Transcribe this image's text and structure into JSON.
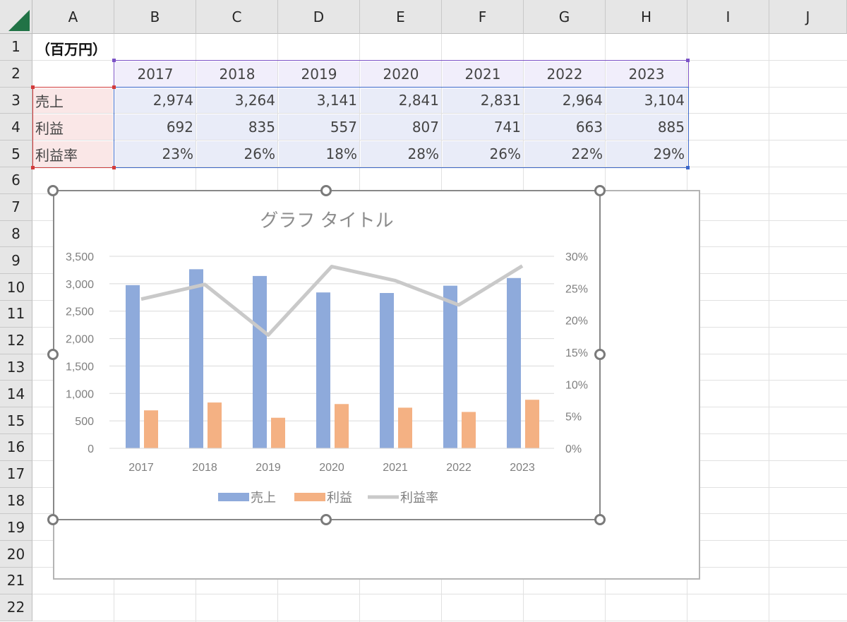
{
  "sheet": {
    "columns": [
      "A",
      "B",
      "C",
      "D",
      "E",
      "F",
      "G",
      "H",
      "I",
      "J"
    ],
    "rows": [
      "1",
      "2",
      "3",
      "4",
      "5",
      "6",
      "7",
      "8",
      "9",
      "10",
      "11",
      "12",
      "13",
      "14",
      "15",
      "16",
      "17",
      "18",
      "19",
      "20",
      "21",
      "22"
    ],
    "unit_label": "（百万円）",
    "years": [
      "2017",
      "2018",
      "2019",
      "2020",
      "2021",
      "2022",
      "2023"
    ],
    "table": [
      {
        "label": "売上",
        "values": [
          "2,974",
          "3,264",
          "3,141",
          "2,841",
          "2,831",
          "2,964",
          "3,104"
        ]
      },
      {
        "label": "利益",
        "values": [
          "692",
          "835",
          "557",
          "807",
          "741",
          "663",
          "885"
        ]
      },
      {
        "label": "利益率",
        "values": [
          "23%",
          "26%",
          "18%",
          "28%",
          "26%",
          "22%",
          "29%"
        ]
      }
    ]
  },
  "chart_data": {
    "type": "bar",
    "title": "グラフ タイトル",
    "categories": [
      "2017",
      "2018",
      "2019",
      "2020",
      "2021",
      "2022",
      "2023"
    ],
    "series": [
      {
        "name": "売上",
        "type": "bar",
        "axis": "primary",
        "color": "#8eaadb",
        "values": [
          2974,
          3264,
          3141,
          2841,
          2831,
          2964,
          3104
        ]
      },
      {
        "name": "利益",
        "type": "bar",
        "axis": "primary",
        "color": "#f4b183",
        "values": [
          692,
          835,
          557,
          807,
          741,
          663,
          885
        ]
      },
      {
        "name": "利益率",
        "type": "line",
        "axis": "secondary",
        "color": "#c9c9c9",
        "values": [
          0.233,
          0.256,
          0.177,
          0.284,
          0.262,
          0.224,
          0.285
        ]
      }
    ],
    "ylim": [
      0,
      3500
    ],
    "y_ticks": [
      "0",
      "500",
      "1,000",
      "1,500",
      "2,000",
      "2,500",
      "3,000",
      "3,500"
    ],
    "y2lim": [
      0,
      0.3
    ],
    "y2_ticks": [
      "0%",
      "5%",
      "10%",
      "15%",
      "20%",
      "25%",
      "30%"
    ],
    "grid": true,
    "legend": "bottom"
  }
}
